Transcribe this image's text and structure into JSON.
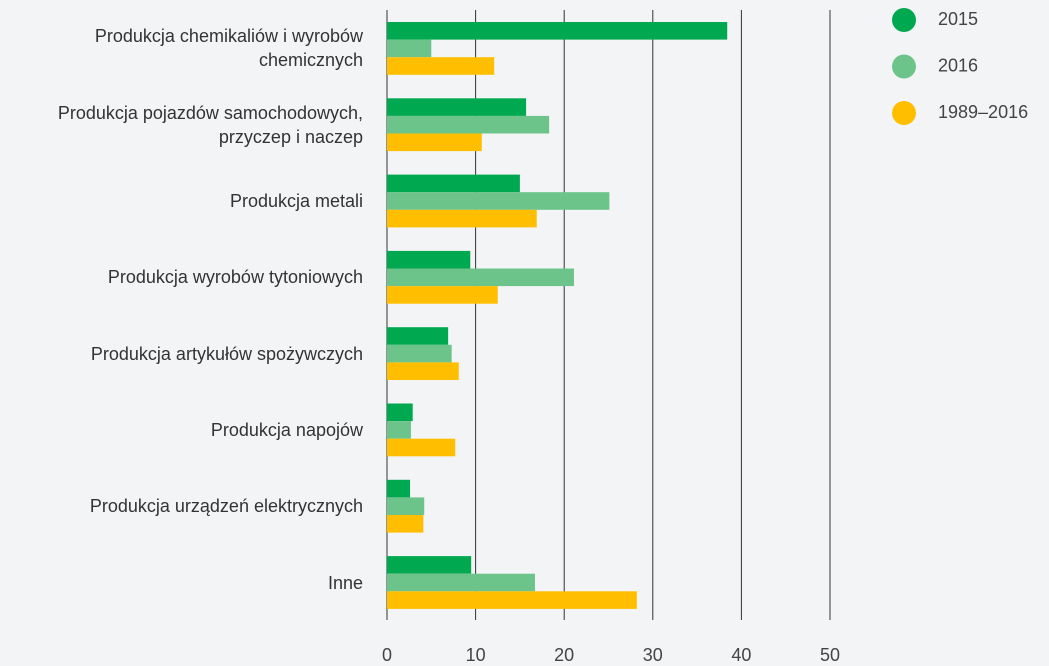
{
  "chart_data": {
    "type": "hbar",
    "categories": [
      "Produkcja chemikaliów i wyrobów\nchemicznych",
      "Produkcja pojazdów samochodowych,\nprzyczep i naczep",
      "Produkcja metali",
      "Produkcja wyrobów tytoniowych",
      "Produkcja artykułów spożywczych",
      "Produkcja napojów",
      "Produkcja urządzeń elektrycznych",
      "Inne"
    ],
    "series": [
      {
        "name": "2015",
        "color": "#00a94f",
        "values": [
          38.4,
          15.7,
          15.0,
          9.4,
          6.9,
          2.9,
          2.6,
          9.5
        ]
      },
      {
        "name": "2016",
        "color": "#6cc48a",
        "values": [
          5.0,
          18.3,
          25.1,
          21.1,
          7.3,
          2.7,
          4.2,
          16.7
        ]
      },
      {
        "name": "1989–2016",
        "color": "#ffbf00",
        "values": [
          12.1,
          10.7,
          16.9,
          12.5,
          8.1,
          7.7,
          4.1,
          28.2
        ]
      }
    ],
    "xlim": [
      0,
      50
    ],
    "xticks": [
      0,
      10,
      20,
      30,
      40,
      50
    ],
    "grid": true,
    "legend": "top-right"
  }
}
